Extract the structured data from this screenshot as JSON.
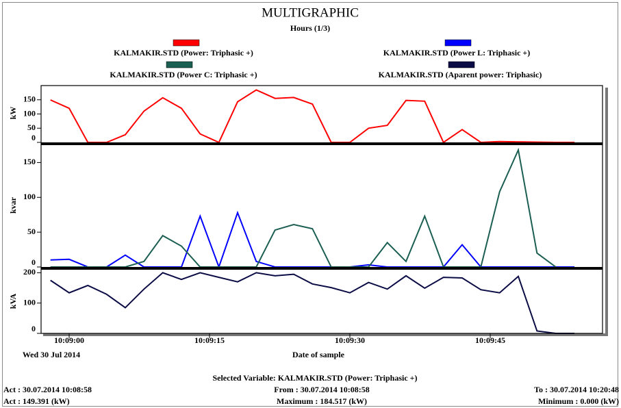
{
  "chart_data": [
    {
      "type": "line",
      "title": "MULTIGRAPHIC",
      "subtitle": "Hours (1/3)",
      "ylabel": "kW",
      "ylim": [
        0,
        200
      ],
      "yticks": [
        0,
        50,
        100,
        150
      ],
      "series": [
        {
          "name": "KALMAKIR.STD (Power: Triphasic +)",
          "color": "#ff0000",
          "values": [
            149.391,
            120,
            0,
            0,
            27,
            110,
            157,
            120,
            30,
            0,
            143,
            184.517,
            155,
            158,
            135,
            0,
            0,
            50,
            60,
            148,
            145,
            0,
            45,
            0,
            3,
            2,
            1,
            0,
            0
          ]
        }
      ]
    },
    {
      "type": "line",
      "ylabel": "kvar",
      "ylim": [
        0,
        175
      ],
      "yticks": [
        0,
        50,
        100,
        150
      ],
      "series": [
        {
          "name": "KALMAKIR.STD (Power L: Triphasic +)",
          "color": "#0000ff",
          "values": [
            10,
            11,
            0,
            0,
            17,
            0,
            0,
            0,
            73,
            0,
            78,
            8,
            0,
            0,
            0,
            0,
            0,
            3,
            0,
            0,
            0,
            0,
            32,
            0,
            0,
            0,
            0,
            0,
            0
          ]
        },
        {
          "name": "KALMAKIR.STD (Power C: Triphasic +)",
          "color": "#1b5e52",
          "values": [
            0,
            0,
            0,
            0,
            0,
            8,
            45,
            30,
            0,
            0,
            0,
            0,
            53,
            61,
            55,
            0,
            0,
            0,
            35,
            8,
            73,
            0,
            0,
            0,
            108,
            168,
            20,
            0,
            null
          ]
        }
      ]
    },
    {
      "type": "line",
      "ylabel": "kVA",
      "xlabel": "Date of sample",
      "date": "Wed 30 Jul 2014",
      "ylim": [
        0,
        210
      ],
      "yticks": [
        0,
        100,
        200
      ],
      "x": [
        "10:08:58",
        "10:09:00",
        "10:09:02",
        "10:09:04",
        "10:09:06",
        "10:09:08",
        "10:09:10",
        "10:09:12",
        "10:09:14",
        "10:09:16",
        "10:09:18",
        "10:09:20",
        "10:09:22",
        "10:09:24",
        "10:09:26",
        "10:09:28",
        "10:09:30",
        "10:09:32",
        "10:09:34",
        "10:09:36",
        "10:09:38",
        "10:09:40",
        "10:09:42",
        "10:09:44",
        "10:09:46",
        "10:09:48",
        "10:09:50",
        "10:09:52",
        "10:09:54"
      ],
      "xlim": [
        "10:08:57",
        "10:09:57"
      ],
      "xticks": [
        "10:09:00",
        "10:09:15",
        "10:09:30",
        "10:09:45"
      ],
      "series": [
        {
          "name": "KALMAKIR.STD (Aparent power: Triphasic)",
          "color": "#0b0b45",
          "values": [
            175,
            134,
            158,
            129,
            85,
            146,
            200,
            178,
            200,
            185,
            170,
            200,
            190,
            195,
            163,
            151,
            134,
            168,
            146,
            190,
            149,
            185,
            183,
            144,
            134,
            188,
            8,
            0,
            0
          ]
        }
      ]
    }
  ],
  "footer": {
    "selected": "Selected Variable: KALMAKIR.STD (Power: Triphasic +)",
    "act_time": "Act : 30.07.2014 10:08:58",
    "from": "From : 30.07.2014 10:08:58",
    "to": "To : 30.07.2014 10:20:48",
    "act_value": "Act : 149.391 (kW)",
    "maximum": "Maximum : 184.517 (kW)",
    "minimum": "Minimum : 0.000 (kW)"
  }
}
